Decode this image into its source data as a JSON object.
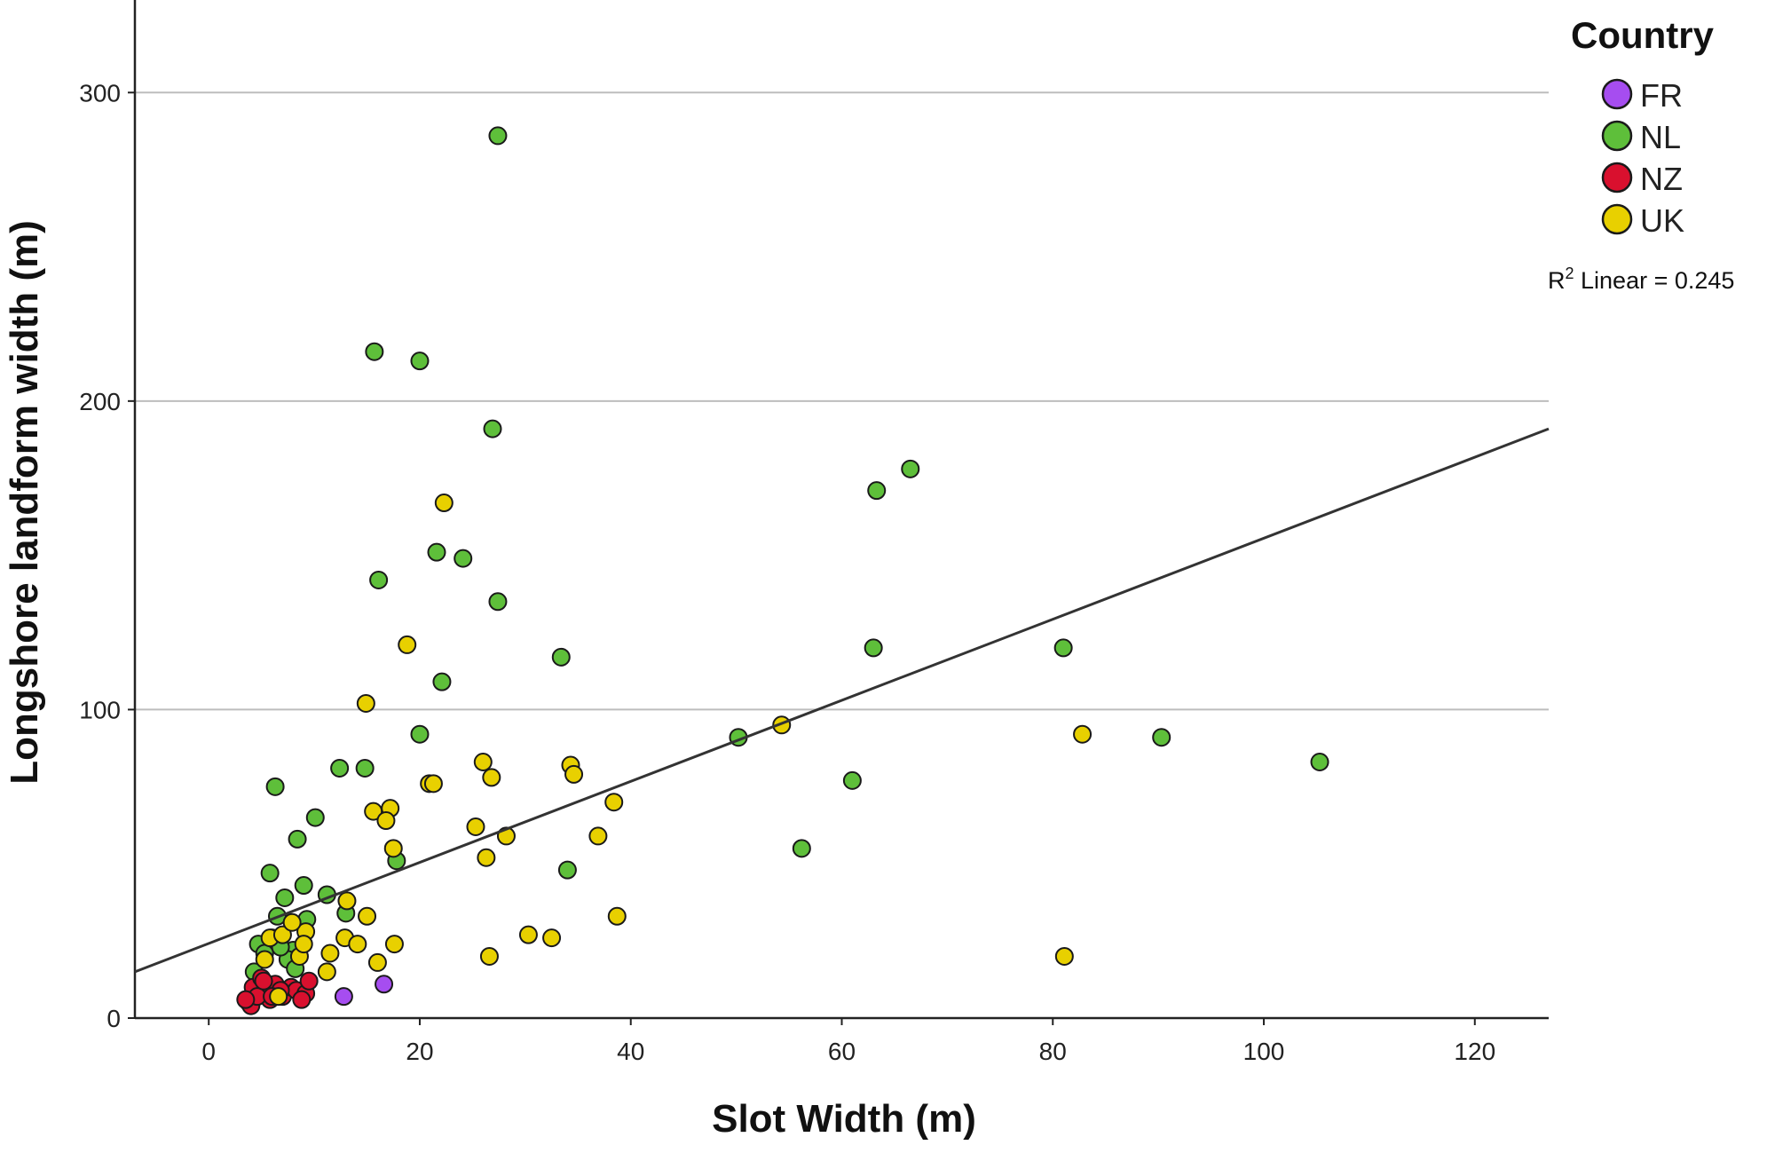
{
  "chart_data": {
    "type": "scatter",
    "xlabel": "Slot Width (m)",
    "ylabel": "Longshore landform width (m)",
    "xlim": [
      -7,
      127
    ],
    "ylim": [
      0,
      330
    ],
    "x_ticks": [
      0,
      20,
      40,
      60,
      80,
      100,
      120
    ],
    "y_ticks": [
      0,
      100,
      200,
      300
    ],
    "grid": "horizontal",
    "legend_title": "Country",
    "legend_position": "right",
    "fit_label_prefix": "R",
    "fit_label_exp": "2",
    "fit_label_suffix": " Linear = 0.245",
    "fit_line": {
      "x": [
        -7,
        127
      ],
      "y": [
        15,
        191
      ]
    },
    "series": [
      {
        "name": "FR",
        "color": "#a64df0",
        "points": [
          [
            12.8,
            7
          ],
          [
            16.6,
            11
          ]
        ]
      },
      {
        "name": "NL",
        "color": "#5ebf3a",
        "points": [
          [
            27.4,
            286
          ],
          [
            15.7,
            216
          ],
          [
            20.0,
            213
          ],
          [
            26.9,
            191
          ],
          [
            66.5,
            178
          ],
          [
            63.3,
            171
          ],
          [
            21.6,
            151
          ],
          [
            24.1,
            149
          ],
          [
            16.1,
            142
          ],
          [
            27.4,
            135
          ],
          [
            33.4,
            117
          ],
          [
            63.0,
            120
          ],
          [
            81.0,
            120
          ],
          [
            22.1,
            109
          ],
          [
            50.2,
            91
          ],
          [
            90.3,
            91
          ],
          [
            105.3,
            83
          ],
          [
            20.0,
            92
          ],
          [
            12.4,
            81
          ],
          [
            14.8,
            81
          ],
          [
            61.0,
            77
          ],
          [
            6.3,
            75
          ],
          [
            10.1,
            65
          ],
          [
            8.4,
            58
          ],
          [
            56.2,
            55
          ],
          [
            17.8,
            51
          ],
          [
            34.0,
            48
          ],
          [
            5.8,
            47
          ],
          [
            9.0,
            43
          ],
          [
            11.2,
            40
          ],
          [
            7.2,
            39
          ],
          [
            6.5,
            33
          ],
          [
            9.3,
            32
          ],
          [
            13.0,
            34
          ],
          [
            4.7,
            24
          ],
          [
            8.0,
            22
          ],
          [
            5.3,
            21
          ],
          [
            6.0,
            26
          ],
          [
            7.5,
            19
          ],
          [
            4.3,
            15
          ],
          [
            6.8,
            23
          ],
          [
            8.2,
            16
          ]
        ]
      },
      {
        "name": "NZ",
        "color": "#d9102e",
        "points": [
          [
            3.8,
            5
          ],
          [
            4.2,
            10
          ],
          [
            5.0,
            13
          ],
          [
            5.5,
            8
          ],
          [
            6.3,
            11
          ],
          [
            7.0,
            7
          ],
          [
            7.8,
            10
          ],
          [
            8.3,
            9
          ],
          [
            9.2,
            8
          ],
          [
            9.5,
            12
          ],
          [
            4.0,
            4
          ],
          [
            5.8,
            6
          ],
          [
            6.8,
            9
          ],
          [
            4.6,
            7
          ],
          [
            3.5,
            6
          ],
          [
            5.2,
            12
          ],
          [
            8.8,
            6
          ],
          [
            6.0,
            7
          ]
        ]
      },
      {
        "name": "UK",
        "color": "#e8d000",
        "points": [
          [
            22.3,
            167
          ],
          [
            18.8,
            121
          ],
          [
            14.9,
            102
          ],
          [
            54.3,
            95
          ],
          [
            82.8,
            92
          ],
          [
            26.0,
            83
          ],
          [
            34.3,
            82
          ],
          [
            34.6,
            79
          ],
          [
            26.8,
            78
          ],
          [
            20.9,
            76
          ],
          [
            21.3,
            76
          ],
          [
            38.4,
            70
          ],
          [
            15.6,
            67
          ],
          [
            17.2,
            68
          ],
          [
            16.8,
            64
          ],
          [
            25.3,
            62
          ],
          [
            28.2,
            59
          ],
          [
            36.9,
            59
          ],
          [
            17.5,
            55
          ],
          [
            26.3,
            52
          ],
          [
            13.1,
            38
          ],
          [
            15.0,
            33
          ],
          [
            38.7,
            33
          ],
          [
            9.2,
            28
          ],
          [
            12.9,
            26
          ],
          [
            30.3,
            27
          ],
          [
            32.5,
            26
          ],
          [
            14.1,
            24
          ],
          [
            17.6,
            24
          ],
          [
            11.5,
            21
          ],
          [
            16.0,
            18
          ],
          [
            26.6,
            20
          ],
          [
            81.1,
            20
          ],
          [
            11.2,
            15
          ],
          [
            5.8,
            26
          ],
          [
            7.0,
            27
          ],
          [
            8.6,
            20
          ],
          [
            9.0,
            24
          ],
          [
            5.3,
            19
          ],
          [
            6.6,
            7
          ],
          [
            7.9,
            31
          ]
        ]
      }
    ]
  }
}
